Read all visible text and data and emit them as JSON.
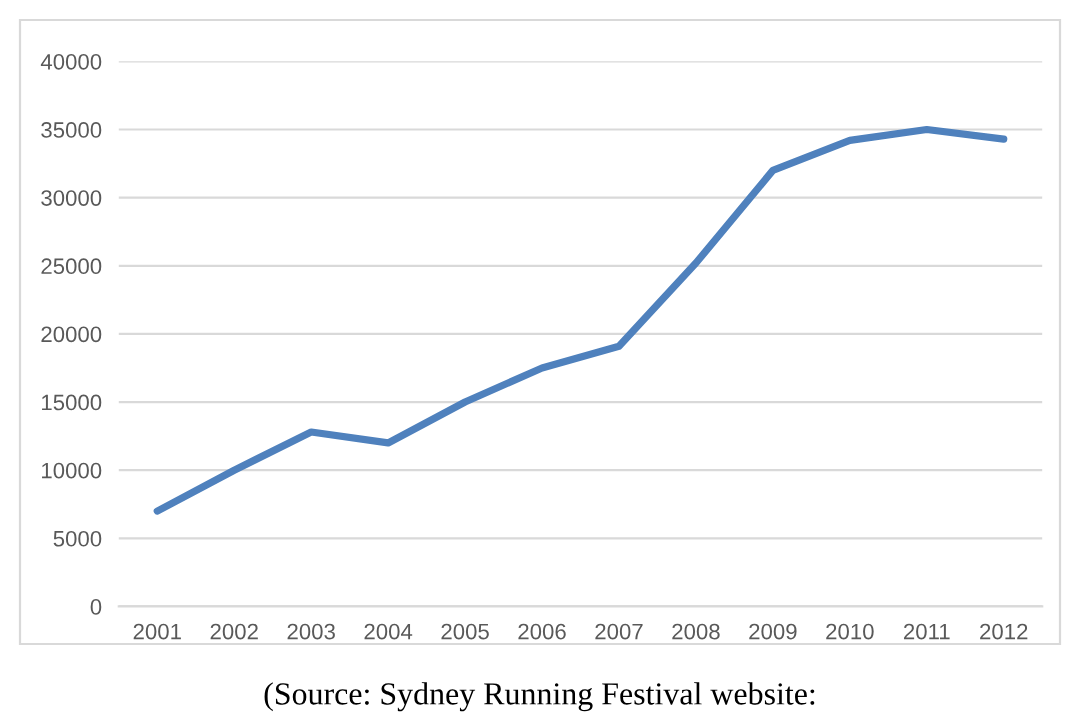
{
  "chart_data": {
    "type": "line",
    "categories": [
      "2001",
      "2002",
      "2003",
      "2004",
      "2005",
      "2006",
      "2007",
      "2008",
      "2009",
      "2010",
      "2011",
      "2012"
    ],
    "series": [
      {
        "color": "#4f81bd",
        "values": [
          7000,
          10000,
          12800,
          12000,
          15000,
          17500,
          19100,
          25200,
          32000,
          34200,
          35000,
          34300
        ]
      }
    ],
    "ylim": [
      0,
      40000
    ],
    "yticks": [
      0,
      5000,
      10000,
      15000,
      20000,
      25000,
      30000,
      35000,
      40000
    ],
    "grid": "y",
    "legend": false,
    "marker": "none",
    "line_style": "solid",
    "annotations": [
      "(Source: Sydney Running Festival website:"
    ]
  }
}
